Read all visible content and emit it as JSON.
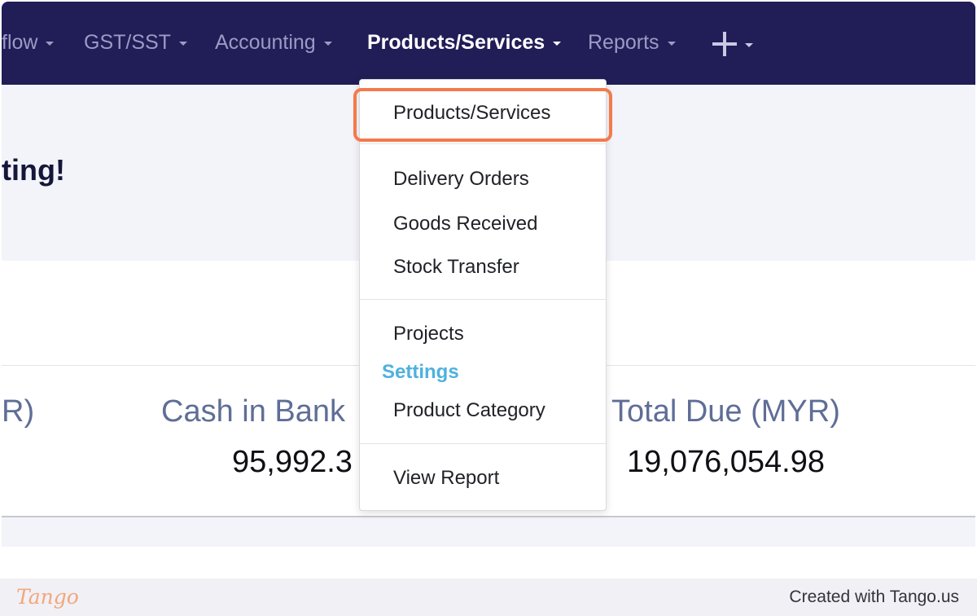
{
  "nav": {
    "items": [
      {
        "label": "flow"
      },
      {
        "label": "GST/SST"
      },
      {
        "label": "Accounting"
      },
      {
        "label": "Products/Services"
      },
      {
        "label": "Reports"
      }
    ],
    "active_index": 3,
    "add_icon": "plus-icon"
  },
  "welcome": {
    "text": "ting!"
  },
  "summary": [
    {
      "label": "R)",
      "value": ""
    },
    {
      "label": "Cash in Bank",
      "value": "95,992.3"
    },
    {
      "label": "Total Due (MYR)",
      "value": "19,076,054.98"
    }
  ],
  "dropdown": {
    "items": [
      {
        "label": "Products/Services",
        "highlighted": true
      },
      {
        "label": "Delivery Orders"
      },
      {
        "label": "Goods Received"
      },
      {
        "label": "Stock Transfer"
      },
      {
        "label": "Projects"
      },
      {
        "label": "Product Category"
      },
      {
        "label": "View Report"
      }
    ],
    "settings_heading": "Settings"
  },
  "footer": {
    "logo": "Tango",
    "text": "Created with Tango.us"
  },
  "colors": {
    "navbar": "#211d57",
    "highlight": "#f47a4c",
    "settings_heading": "#4eb1df"
  }
}
